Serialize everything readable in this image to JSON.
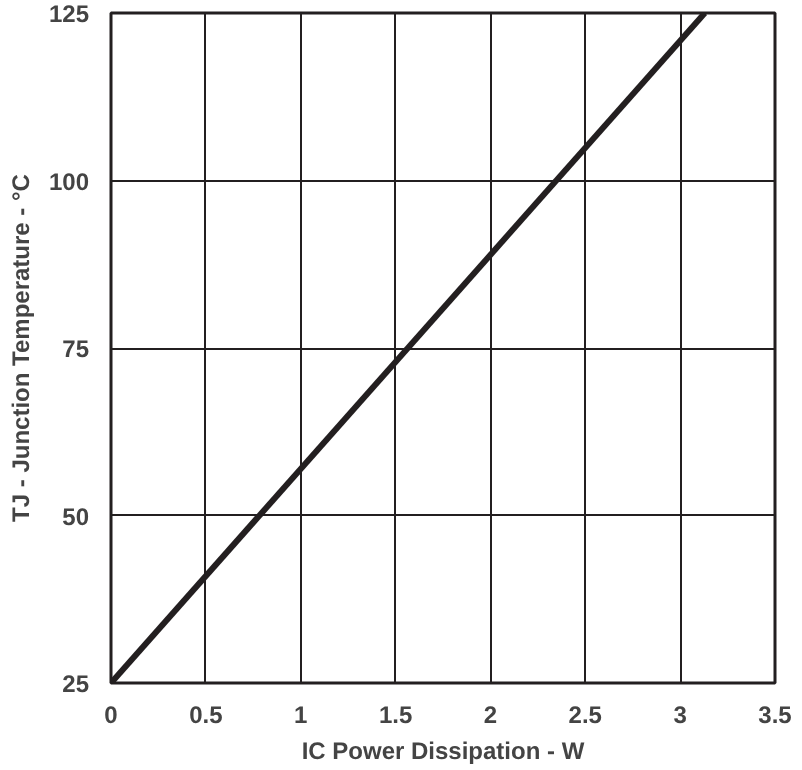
{
  "chart_data": {
    "type": "line",
    "xlabel": "IC Power Dissipation - W",
    "ylabel": "TJ - Junction Temperature - °C",
    "x": [
      0,
      3.13
    ],
    "series": [
      {
        "color": "#231f20",
        "values": [
          25,
          125
        ]
      }
    ],
    "xlim": [
      0,
      3.5
    ],
    "xticks": [
      0,
      0.5,
      1,
      1.5,
      2,
      2.5,
      3,
      3.5
    ],
    "ylim": [
      25,
      125
    ],
    "yticks": [
      25,
      50,
      75,
      100,
      125
    ],
    "grid": true,
    "marker": "none",
    "line_style": "solid"
  }
}
